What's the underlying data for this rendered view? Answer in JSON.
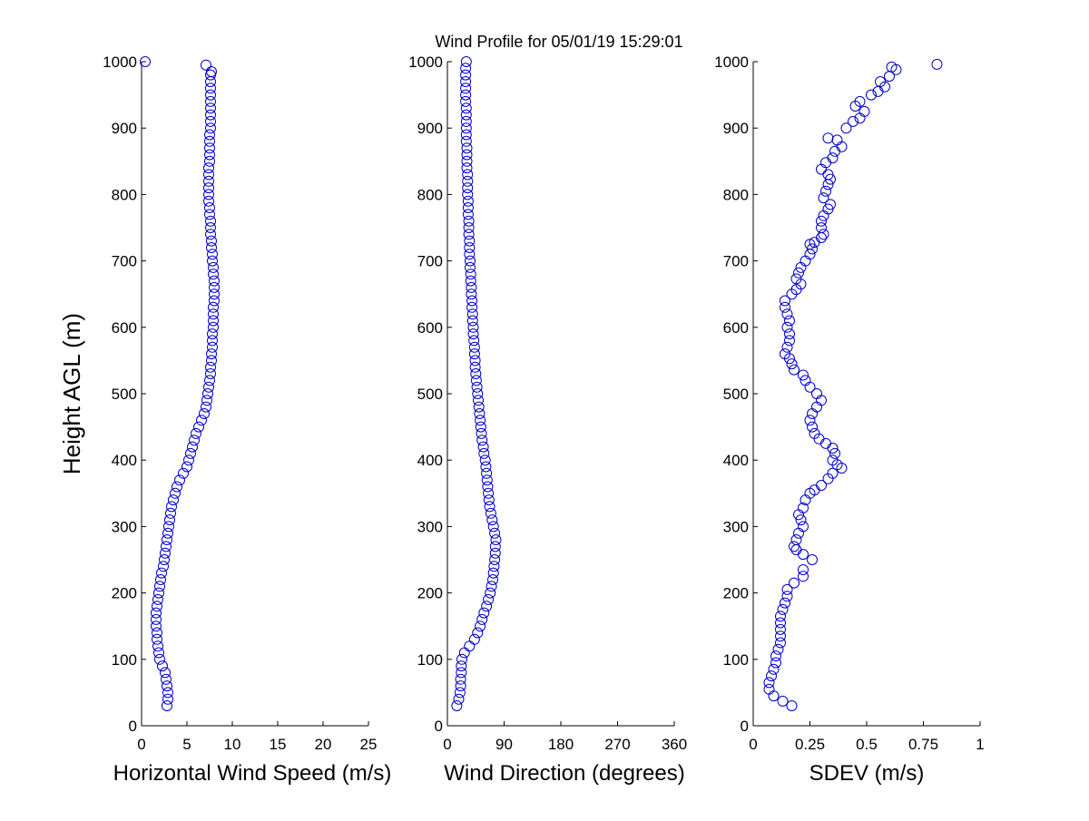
{
  "figure": {
    "title": "Wind Profile for  05/01/19 15:29:01",
    "marker_color": "#0000c8"
  },
  "chart_data": [
    {
      "type": "scatter",
      "xlabel": "Horizontal Wind Speed (m/s)",
      "ylabel": "Height AGL (m)",
      "xlim": [
        0,
        25
      ],
      "ylim": [
        0,
        1000
      ],
      "xticks": [
        0,
        5,
        10,
        15,
        20,
        25
      ],
      "yticks": [
        0,
        100,
        200,
        300,
        400,
        500,
        600,
        700,
        800,
        900,
        1000
      ],
      "grid": false,
      "points": [
        [
          2.8,
          30
        ],
        [
          2.9,
          40
        ],
        [
          2.9,
          50
        ],
        [
          2.8,
          60
        ],
        [
          2.7,
          70
        ],
        [
          2.6,
          80
        ],
        [
          2.3,
          90
        ],
        [
          2.0,
          100
        ],
        [
          1.9,
          110
        ],
        [
          1.8,
          120
        ],
        [
          1.7,
          130
        ],
        [
          1.7,
          140
        ],
        [
          1.6,
          150
        ],
        [
          1.6,
          160
        ],
        [
          1.6,
          170
        ],
        [
          1.7,
          180
        ],
        [
          1.8,
          190
        ],
        [
          1.9,
          200
        ],
        [
          2.0,
          210
        ],
        [
          2.1,
          220
        ],
        [
          2.2,
          230
        ],
        [
          2.4,
          240
        ],
        [
          2.5,
          250
        ],
        [
          2.6,
          260
        ],
        [
          2.7,
          270
        ],
        [
          2.8,
          280
        ],
        [
          2.9,
          290
        ],
        [
          3.0,
          300
        ],
        [
          3.1,
          310
        ],
        [
          3.2,
          320
        ],
        [
          3.3,
          330
        ],
        [
          3.5,
          340
        ],
        [
          3.7,
          350
        ],
        [
          3.9,
          360
        ],
        [
          4.2,
          370
        ],
        [
          4.6,
          380
        ],
        [
          5.0,
          390
        ],
        [
          5.2,
          400
        ],
        [
          5.4,
          410
        ],
        [
          5.6,
          420
        ],
        [
          5.8,
          430
        ],
        [
          6.0,
          440
        ],
        [
          6.3,
          450
        ],
        [
          6.6,
          460
        ],
        [
          6.9,
          470
        ],
        [
          7.1,
          480
        ],
        [
          7.2,
          490
        ],
        [
          7.3,
          500
        ],
        [
          7.4,
          510
        ],
        [
          7.5,
          520
        ],
        [
          7.6,
          530
        ],
        [
          7.6,
          540
        ],
        [
          7.7,
          550
        ],
        [
          7.7,
          560
        ],
        [
          7.8,
          570
        ],
        [
          7.8,
          580
        ],
        [
          7.8,
          590
        ],
        [
          7.9,
          600
        ],
        [
          7.9,
          610
        ],
        [
          7.9,
          620
        ],
        [
          7.9,
          630
        ],
        [
          8.0,
          640
        ],
        [
          8.0,
          650
        ],
        [
          8.0,
          660
        ],
        [
          8.0,
          670
        ],
        [
          7.9,
          680
        ],
        [
          7.9,
          690
        ],
        [
          7.8,
          700
        ],
        [
          7.8,
          710
        ],
        [
          7.7,
          720
        ],
        [
          7.7,
          730
        ],
        [
          7.6,
          740
        ],
        [
          7.6,
          750
        ],
        [
          7.6,
          760
        ],
        [
          7.5,
          770
        ],
        [
          7.5,
          780
        ],
        [
          7.4,
          790
        ],
        [
          7.4,
          800
        ],
        [
          7.4,
          810
        ],
        [
          7.4,
          820
        ],
        [
          7.4,
          830
        ],
        [
          7.4,
          840
        ],
        [
          7.5,
          850
        ],
        [
          7.5,
          860
        ],
        [
          7.5,
          870
        ],
        [
          7.5,
          880
        ],
        [
          7.5,
          890
        ],
        [
          7.6,
          900
        ],
        [
          7.6,
          910
        ],
        [
          7.6,
          920
        ],
        [
          7.6,
          930
        ],
        [
          7.6,
          940
        ],
        [
          7.6,
          950
        ],
        [
          7.6,
          960
        ],
        [
          7.6,
          970
        ],
        [
          7.6,
          980
        ],
        [
          7.7,
          985
        ],
        [
          7.1,
          995
        ],
        [
          0.4,
          1000
        ]
      ]
    },
    {
      "type": "scatter",
      "xlabel": "Wind Direction (degrees)",
      "ylabel": "",
      "xlim": [
        0,
        360
      ],
      "ylim": [
        0,
        1000
      ],
      "xticks": [
        0,
        90,
        180,
        270,
        360
      ],
      "yticks": [
        0,
        100,
        200,
        300,
        400,
        500,
        600,
        700,
        800,
        900,
        1000
      ],
      "grid": false,
      "points": [
        [
          15,
          30
        ],
        [
          18,
          40
        ],
        [
          20,
          50
        ],
        [
          21,
          60
        ],
        [
          21,
          70
        ],
        [
          22,
          80
        ],
        [
          22,
          90
        ],
        [
          23,
          100
        ],
        [
          27,
          110
        ],
        [
          35,
          120
        ],
        [
          43,
          130
        ],
        [
          48,
          140
        ],
        [
          52,
          150
        ],
        [
          55,
          160
        ],
        [
          58,
          170
        ],
        [
          62,
          180
        ],
        [
          65,
          190
        ],
        [
          68,
          200
        ],
        [
          70,
          210
        ],
        [
          72,
          220
        ],
        [
          73,
          230
        ],
        [
          74,
          240
        ],
        [
          75,
          250
        ],
        [
          76,
          260
        ],
        [
          76,
          270
        ],
        [
          77,
          280
        ],
        [
          75,
          290
        ],
        [
          73,
          300
        ],
        [
          71,
          310
        ],
        [
          69,
          320
        ],
        [
          67,
          330
        ],
        [
          66,
          340
        ],
        [
          65,
          350
        ],
        [
          64,
          360
        ],
        [
          63,
          370
        ],
        [
          62,
          380
        ],
        [
          61,
          390
        ],
        [
          60,
          400
        ],
        [
          58,
          410
        ],
        [
          57,
          420
        ],
        [
          55,
          430
        ],
        [
          54,
          440
        ],
        [
          53,
          450
        ],
        [
          52,
          460
        ],
        [
          51,
          470
        ],
        [
          50,
          480
        ],
        [
          49,
          490
        ],
        [
          48,
          500
        ],
        [
          47,
          510
        ],
        [
          46,
          520
        ],
        [
          45,
          530
        ],
        [
          44,
          540
        ],
        [
          44,
          550
        ],
        [
          43,
          560
        ],
        [
          43,
          570
        ],
        [
          42,
          580
        ],
        [
          41,
          590
        ],
        [
          41,
          600
        ],
        [
          40,
          610
        ],
        [
          40,
          620
        ],
        [
          39,
          630
        ],
        [
          39,
          640
        ],
        [
          38,
          650
        ],
        [
          38,
          660
        ],
        [
          37,
          670
        ],
        [
          37,
          680
        ],
        [
          36,
          690
        ],
        [
          36,
          700
        ],
        [
          35,
          710
        ],
        [
          35,
          720
        ],
        [
          35,
          730
        ],
        [
          34,
          740
        ],
        [
          34,
          750
        ],
        [
          34,
          760
        ],
        [
          33,
          770
        ],
        [
          33,
          780
        ],
        [
          33,
          790
        ],
        [
          32,
          800
        ],
        [
          32,
          810
        ],
        [
          32,
          820
        ],
        [
          32,
          830
        ],
        [
          31,
          840
        ],
        [
          31,
          850
        ],
        [
          31,
          860
        ],
        [
          31,
          870
        ],
        [
          30,
          880
        ],
        [
          30,
          890
        ],
        [
          30,
          900
        ],
        [
          30,
          910
        ],
        [
          30,
          920
        ],
        [
          30,
          930
        ],
        [
          29,
          940
        ],
        [
          29,
          950
        ],
        [
          29,
          960
        ],
        [
          29,
          970
        ],
        [
          29,
          980
        ],
        [
          29,
          990
        ],
        [
          30,
          1000
        ]
      ]
    },
    {
      "type": "scatter",
      "xlabel": "SDEV  (m/s)",
      "ylabel": "",
      "xlim": [
        0,
        1
      ],
      "ylim": [
        0,
        1000
      ],
      "xticks": [
        0,
        0.25,
        0.5,
        0.75,
        1
      ],
      "yticks": [
        0,
        100,
        200,
        300,
        400,
        500,
        600,
        700,
        800,
        900,
        1000
      ],
      "grid": false,
      "points": [
        [
          0.17,
          30
        ],
        [
          0.13,
          37
        ],
        [
          0.09,
          45
        ],
        [
          0.07,
          55
        ],
        [
          0.07,
          65
        ],
        [
          0.08,
          75
        ],
        [
          0.09,
          85
        ],
        [
          0.1,
          95
        ],
        [
          0.1,
          105
        ],
        [
          0.11,
          115
        ],
        [
          0.12,
          125
        ],
        [
          0.12,
          135
        ],
        [
          0.12,
          145
        ],
        [
          0.12,
          155
        ],
        [
          0.12,
          165
        ],
        [
          0.13,
          175
        ],
        [
          0.14,
          185
        ],
        [
          0.15,
          195
        ],
        [
          0.15,
          205
        ],
        [
          0.18,
          215
        ],
        [
          0.22,
          225
        ],
        [
          0.22,
          235
        ],
        [
          0.26,
          250
        ],
        [
          0.22,
          258
        ],
        [
          0.19,
          265
        ],
        [
          0.18,
          270
        ],
        [
          0.19,
          280
        ],
        [
          0.2,
          290
        ],
        [
          0.22,
          300
        ],
        [
          0.21,
          310
        ],
        [
          0.2,
          318
        ],
        [
          0.22,
          328
        ],
        [
          0.23,
          340
        ],
        [
          0.25,
          350
        ],
        [
          0.27,
          355
        ],
        [
          0.3,
          362
        ],
        [
          0.33,
          372
        ],
        [
          0.35,
          380
        ],
        [
          0.39,
          388
        ],
        [
          0.37,
          393
        ],
        [
          0.35,
          400
        ],
        [
          0.36,
          410
        ],
        [
          0.35,
          418
        ],
        [
          0.32,
          425
        ],
        [
          0.29,
          432
        ],
        [
          0.27,
          440
        ],
        [
          0.26,
          450
        ],
        [
          0.25,
          460
        ],
        [
          0.26,
          470
        ],
        [
          0.28,
          480
        ],
        [
          0.3,
          490
        ],
        [
          0.28,
          500
        ],
        [
          0.25,
          510
        ],
        [
          0.23,
          520
        ],
        [
          0.22,
          528
        ],
        [
          0.18,
          536
        ],
        [
          0.17,
          545
        ],
        [
          0.16,
          553
        ],
        [
          0.14,
          560
        ],
        [
          0.15,
          570
        ],
        [
          0.16,
          580
        ],
        [
          0.16,
          590
        ],
        [
          0.15,
          600
        ],
        [
          0.16,
          610
        ],
        [
          0.15,
          620
        ],
        [
          0.14,
          630
        ],
        [
          0.14,
          640
        ],
        [
          0.17,
          650
        ],
        [
          0.19,
          657
        ],
        [
          0.21,
          665
        ],
        [
          0.19,
          673
        ],
        [
          0.2,
          682
        ],
        [
          0.21,
          690
        ],
        [
          0.23,
          700
        ],
        [
          0.25,
          710
        ],
        [
          0.26,
          718
        ],
        [
          0.25,
          725
        ],
        [
          0.27,
          728
        ],
        [
          0.3,
          735
        ],
        [
          0.31,
          740
        ],
        [
          0.3,
          750
        ],
        [
          0.3,
          760
        ],
        [
          0.31,
          768
        ],
        [
          0.33,
          778
        ],
        [
          0.34,
          785
        ],
        [
          0.31,
          795
        ],
        [
          0.32,
          805
        ],
        [
          0.33,
          815
        ],
        [
          0.34,
          823
        ],
        [
          0.33,
          830
        ],
        [
          0.3,
          838
        ],
        [
          0.32,
          848
        ],
        [
          0.35,
          855
        ],
        [
          0.36,
          865
        ],
        [
          0.39,
          872
        ],
        [
          0.37,
          882
        ],
        [
          0.33,
          885
        ],
        [
          0.41,
          900
        ],
        [
          0.44,
          910
        ],
        [
          0.47,
          915
        ],
        [
          0.49,
          925
        ],
        [
          0.45,
          933
        ],
        [
          0.47,
          940
        ],
        [
          0.52,
          950
        ],
        [
          0.55,
          955
        ],
        [
          0.58,
          962
        ],
        [
          0.56,
          970
        ],
        [
          0.6,
          978
        ],
        [
          0.63,
          988
        ],
        [
          0.61,
          992
        ],
        [
          0.81,
          996
        ]
      ]
    }
  ]
}
